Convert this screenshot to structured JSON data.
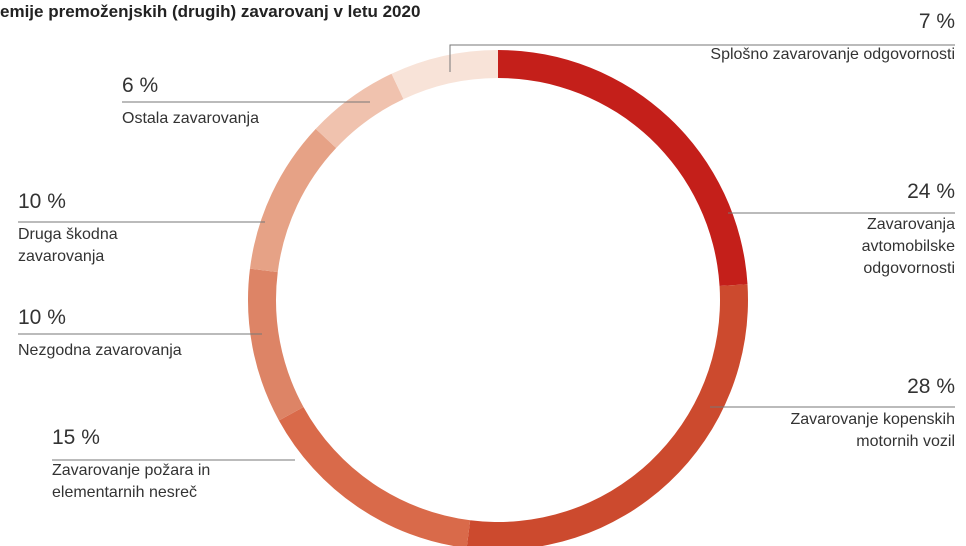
{
  "chart_data": {
    "type": "donut",
    "title": "emije premoženjskih (drugih) zavarovanj v letu 2020",
    "categories": [
      "Zavarovanja avtomobilske odgovornosti",
      "Zavarovanje kopenskih motornih vozil",
      "Zavarovanje požara in elementarnih nesreč",
      "Nezgodna zavarovanja",
      "Druga škodna zavarovanja",
      "Ostala zavarovanja",
      "Splošno zavarovanje odgovornosti"
    ],
    "values": [
      24,
      28,
      15,
      10,
      10,
      6,
      7
    ],
    "value_labels": [
      "24 %",
      "28 %",
      "15 %",
      "10 %",
      "10 %",
      "6 %",
      "7 %"
    ],
    "colors": [
      "#c41f1a",
      "#cc4a2e",
      "#d96a4a",
      "#dd8466",
      "#e6a286",
      "#f0c2ae",
      "#f8e3d8"
    ]
  }
}
